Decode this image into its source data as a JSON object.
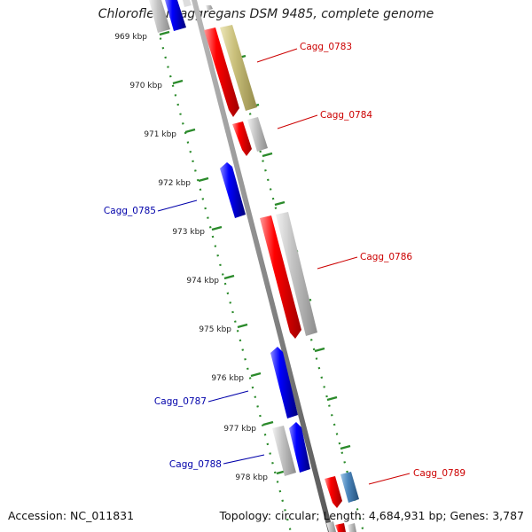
{
  "title": "Chloroflexus aggregans DSM 9485, complete genome",
  "accession": "Accession: NC_011831",
  "summary": "Topology: circular; Length: 4,684,931 bp; Genes: 3,787",
  "colors": {
    "forward_gene": "#ff0000",
    "reverse_gene": "#0000ff",
    "cds_gray": "#b8b8b8",
    "olive": "#c8bf78",
    "steel": "#4a7fb0",
    "ticks": "#2a8a2a",
    "backbone": "#888888",
    "forward_label": "#cc0000",
    "reverse_label": "#0000aa"
  },
  "kbp_labels": [
    "969 kbp",
    "970 kbp",
    "971 kbp",
    "972 kbp",
    "973 kbp",
    "974 kbp",
    "975 kbp",
    "976 kbp",
    "977 kbp",
    "978 kbp"
  ],
  "gene_labels": [
    "Cagg_0783",
    "Cagg_0784",
    "Cagg_0785",
    "Cagg_0786",
    "Cagg_0787",
    "Cagg_0788",
    "Cagg_0789"
  ]
}
